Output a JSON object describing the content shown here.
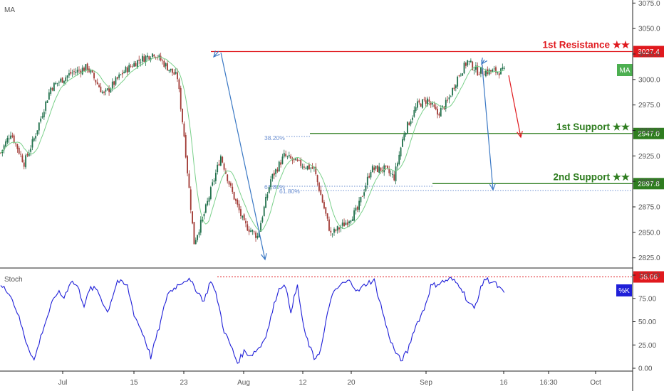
{
  "indicators": {
    "ma_label": "MA",
    "stoch_label": "Stoch"
  },
  "colors": {
    "up": "#26a69a",
    "up_body": "#1f6f4a",
    "down": "#a13a35",
    "ma": "#7ad08a",
    "resistance": "#e0191e",
    "support": "#2e7d1f",
    "fib_line": "#6b8fd1",
    "stoch": "#1f1fd8",
    "pattern": "#3a78c4",
    "axis_text": "#555555",
    "grid": "#f0f3fa"
  },
  "chart_data": [
    {
      "type": "candlestick",
      "title": "",
      "ylim": [
        2815,
        3078
      ],
      "y_ticks": [
        "3075.0",
        "3050.0",
        "3025.0",
        "3000.0",
        "2975.0",
        "2950.0",
        "2925.0",
        "2900.0",
        "2875.0",
        "2850.0",
        "2825.0"
      ],
      "x_labels": [
        "Jul",
        "15",
        "23",
        "Aug",
        "12",
        "20",
        "Sep",
        "16",
        "16:30",
        "Oct"
      ],
      "trend_anchors": [
        [
          0,
          2928
        ],
        [
          6,
          2948
        ],
        [
          14,
          2918
        ],
        [
          20,
          2942
        ],
        [
          30,
          2992
        ],
        [
          42,
          3006
        ],
        [
          52,
          3012
        ],
        [
          62,
          2985
        ],
        [
          74,
          3008
        ],
        [
          82,
          3018
        ],
        [
          92,
          3026
        ],
        [
          100,
          3012
        ],
        [
          106,
          3002
        ],
        [
          110,
          2945
        ],
        [
          116,
          2840
        ],
        [
          122,
          2868
        ],
        [
          132,
          2925
        ],
        [
          138,
          2893
        ],
        [
          146,
          2858
        ],
        [
          154,
          2846
        ],
        [
          162,
          2902
        ],
        [
          170,
          2925
        ],
        [
          178,
          2918
        ],
        [
          188,
          2912
        ],
        [
          198,
          2848
        ],
        [
          206,
          2858
        ],
        [
          214,
          2872
        ],
        [
          222,
          2912
        ],
        [
          230,
          2912
        ],
        [
          236,
          2904
        ],
        [
          242,
          2948
        ],
        [
          250,
          2975
        ],
        [
          256,
          2980
        ],
        [
          262,
          2966
        ],
        [
          268,
          2978
        ],
        [
          274,
          3002
        ],
        [
          280,
          3018
        ],
        [
          286,
          3008
        ]
      ],
      "ma_label": "MA",
      "levels": [
        {
          "name": "1st Resistance ★★",
          "value": 3027.4,
          "price_label": "3027.4",
          "kind": "resistance"
        },
        {
          "name": "1st Support ★★",
          "value": 2947.0,
          "price_label": "2947.0",
          "kind": "support"
        },
        {
          "name": "2nd Support ★★",
          "value": 2897.8,
          "price_label": "2897.8",
          "kind": "support"
        }
      ],
      "fib_labels": [
        "38.20%",
        "61.80%",
        "61.80%"
      ],
      "projection_arrows": [
        {
          "from": [
            296,
            3027
          ],
          "to": [
            304,
            2949
          ]
        }
      ]
    },
    {
      "type": "line",
      "series": [
        {
          "name": "%K"
        }
      ],
      "ylim": [
        0,
        100
      ],
      "y_ticks": [
        "100.00",
        "75.00",
        "50.00",
        "25.00",
        "0.00"
      ],
      "highlighted_value": "98.06",
      "legend_tag": "%K",
      "anchors": [
        [
          0,
          88
        ],
        [
          5,
          82
        ],
        [
          10,
          60
        ],
        [
          15,
          30
        ],
        [
          20,
          8
        ],
        [
          25,
          40
        ],
        [
          30,
          66
        ],
        [
          34,
          82
        ],
        [
          38,
          76
        ],
        [
          42,
          94
        ],
        [
          46,
          88
        ],
        [
          50,
          68
        ],
        [
          54,
          86
        ],
        [
          58,
          84
        ],
        [
          64,
          60
        ],
        [
          70,
          94
        ],
        [
          76,
          88
        ],
        [
          80,
          58
        ],
        [
          86,
          34
        ],
        [
          90,
          12
        ],
        [
          96,
          50
        ],
        [
          100,
          80
        ],
        [
          108,
          92
        ],
        [
          112,
          96
        ],
        [
          116,
          88
        ],
        [
          122,
          72
        ],
        [
          126,
          95
        ],
        [
          130,
          74
        ],
        [
          134,
          40
        ],
        [
          138,
          24
        ],
        [
          142,
          6
        ],
        [
          146,
          18
        ],
        [
          150,
          14
        ],
        [
          156,
          24
        ],
        [
          160,
          40
        ],
        [
          166,
          82
        ],
        [
          170,
          92
        ],
        [
          174,
          62
        ],
        [
          178,
          88
        ],
        [
          182,
          40
        ],
        [
          188,
          10
        ],
        [
          192,
          20
        ],
        [
          198,
          76
        ],
        [
          204,
          90
        ],
        [
          210,
          94
        ],
        [
          214,
          82
        ],
        [
          220,
          92
        ],
        [
          224,
          94
        ],
        [
          228,
          68
        ],
        [
          232,
          40
        ],
        [
          236,
          20
        ],
        [
          240,
          8
        ],
        [
          244,
          18
        ],
        [
          248,
          42
        ],
        [
          254,
          64
        ],
        [
          258,
          88
        ],
        [
          264,
          92
        ],
        [
          270,
          96
        ],
        [
          276,
          88
        ],
        [
          280,
          72
        ],
        [
          284,
          64
        ],
        [
          290,
          96
        ],
        [
          296,
          92
        ],
        [
          302,
          80
        ]
      ]
    }
  ]
}
